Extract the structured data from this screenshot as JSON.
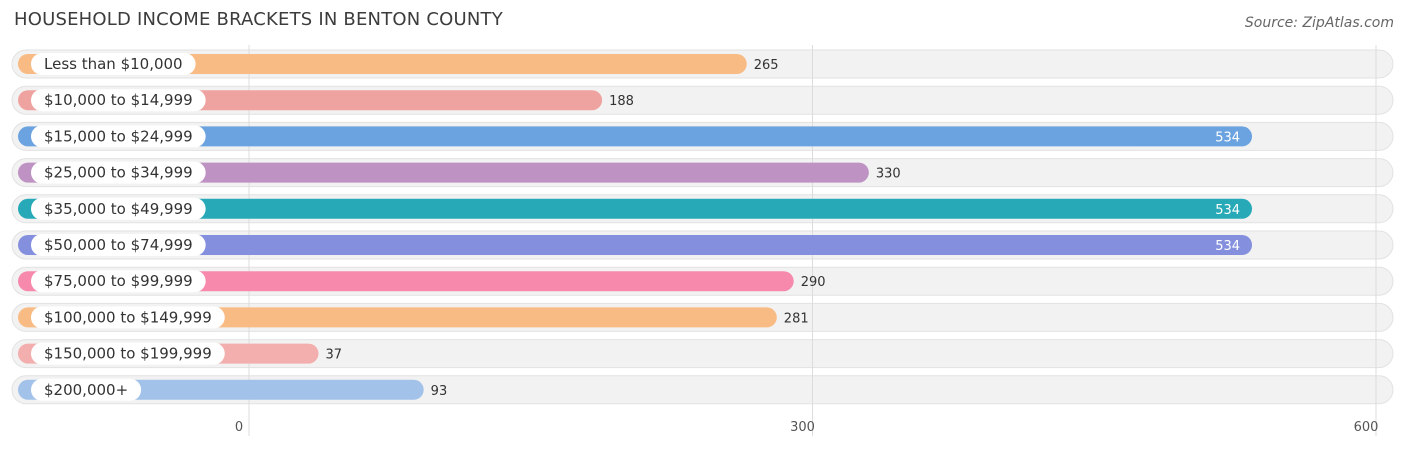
{
  "header": {
    "title": "HOUSEHOLD INCOME BRACKETS IN BENTON COUNTY",
    "source": "Source: ZipAtlas.com"
  },
  "chart_data": {
    "type": "bar",
    "orientation": "horizontal",
    "title": "HOUSEHOLD INCOME BRACKETS IN BENTON COUNTY",
    "categories": [
      "Less than $10,000",
      "$10,000 to $14,999",
      "$15,000 to $24,999",
      "$25,000 to $34,999",
      "$35,000 to $49,999",
      "$50,000 to $74,999",
      "$75,000 to $99,999",
      "$100,000 to $149,999",
      "$150,000 to $199,999",
      "$200,000+"
    ],
    "values": [
      265,
      188,
      534,
      330,
      534,
      534,
      290,
      281,
      37,
      93
    ],
    "colors": [
      "#f9bb84",
      "#efa3a0",
      "#6ba3e0",
      "#be93c3",
      "#27a9b8",
      "#8490de",
      "#f689ac",
      "#f9bb84",
      "#f3aeae",
      "#a2c2ea"
    ],
    "xlim": [
      0,
      600
    ],
    "xticks": [
      0,
      300,
      600
    ],
    "grid": true
  }
}
